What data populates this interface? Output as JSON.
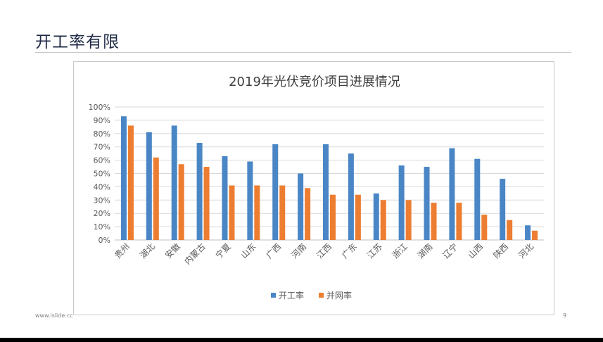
{
  "slide": {
    "title": "开工率有限",
    "footer_url": "www.islide.cc",
    "page_number": "9"
  },
  "chart_data": {
    "type": "bar",
    "title": "2019年光伏竞价项目进展情况",
    "categories": [
      "贵州",
      "湖北",
      "安徽",
      "内蒙古",
      "宁夏",
      "山东",
      "广西",
      "河南",
      "江西",
      "广东",
      "江苏",
      "浙江",
      "湖南",
      "辽宁",
      "山西",
      "陕西",
      "河北"
    ],
    "series": [
      {
        "name": "开工率",
        "color": "#4a86c5",
        "values": [
          93,
          81,
          86,
          73,
          63,
          59,
          72,
          50,
          72,
          65,
          35,
          56,
          55,
          69,
          61,
          46,
          11
        ]
      },
      {
        "name": "并网率",
        "color": "#ed7d31",
        "values": [
          86,
          62,
          57,
          55,
          41,
          41,
          41,
          39,
          34,
          34,
          30,
          30,
          28,
          28,
          19,
          15,
          7
        ]
      }
    ],
    "ylim": [
      0,
      100
    ],
    "yticks": [
      "0%",
      "10%",
      "20%",
      "30%",
      "40%",
      "50%",
      "60%",
      "70%",
      "80%",
      "90%",
      "100%"
    ],
    "grid": true,
    "legend_position": "bottom"
  }
}
